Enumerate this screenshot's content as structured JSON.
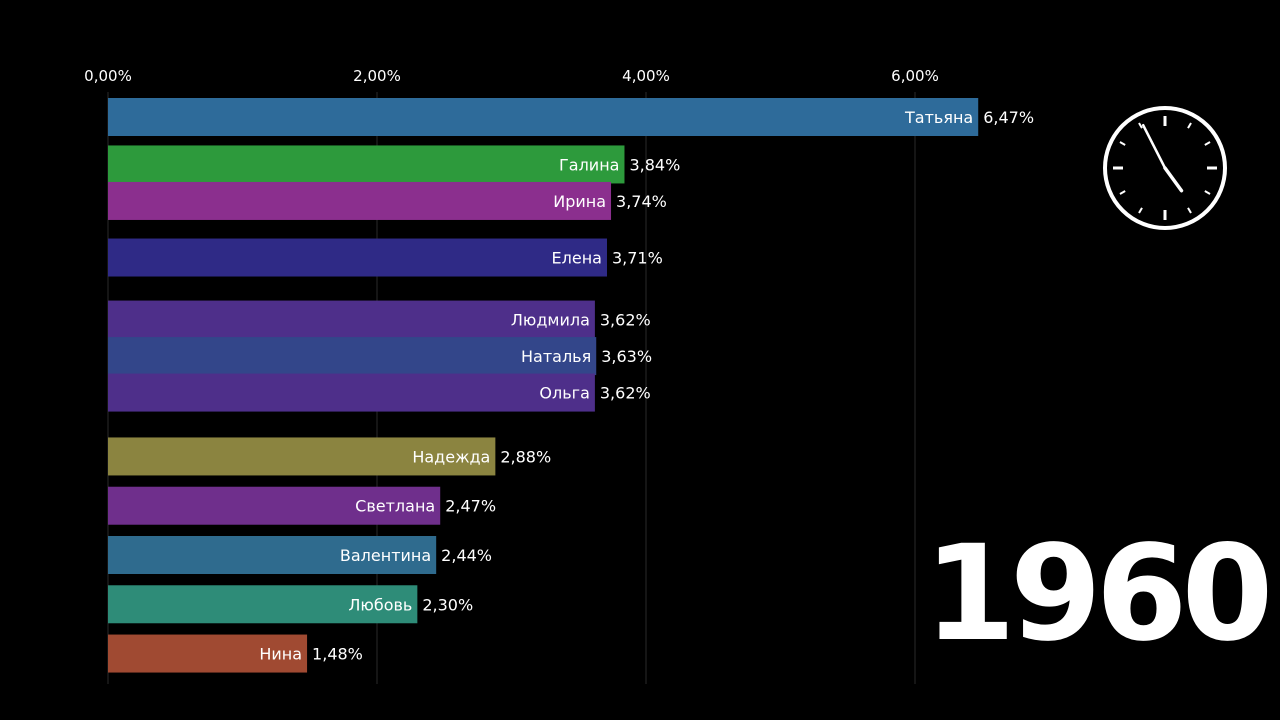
{
  "chart_data": {
    "type": "bar",
    "orientation": "horizontal",
    "title": "",
    "xlabel": "",
    "ylabel": "",
    "xlim": [
      0,
      7
    ],
    "x_ticks": [
      0,
      2,
      4,
      6
    ],
    "x_tick_labels": [
      "0,00%",
      "2,00%",
      "4,00%",
      "6,00%"
    ],
    "grid": true,
    "bars": [
      {
        "name": "Татьяна",
        "value": 6.47,
        "label": "6,47%",
        "color": "#2e6b9a",
        "rank": 0
      },
      {
        "name": "Галина",
        "value": 3.84,
        "label": "3,84%",
        "color": "#2d9a3c",
        "rank": 1.3
      },
      {
        "name": "Ирина",
        "value": 3.74,
        "label": "3,74%",
        "color": "#8b2f8e",
        "rank": 2.3
      },
      {
        "name": "Елена",
        "value": 3.71,
        "label": "3,71%",
        "color": "#2f2a86",
        "rank": 3.85
      },
      {
        "name": "Людмила",
        "value": 3.62,
        "label": "3,62%",
        "color": "#4e2f8a",
        "rank": 5.55
      },
      {
        "name": "Наталья",
        "value": 3.63,
        "label": "3,63%",
        "color": "#33468a",
        "rank": 6.55
      },
      {
        "name": "Ольга",
        "value": 3.62,
        "label": "3,62%",
        "color": "#4e2f8a",
        "rank": 7.55
      },
      {
        "name": "Надежда",
        "value": 2.88,
        "label": "2,88%",
        "color": "#8b8440",
        "rank": 9.3
      },
      {
        "name": "Светлана",
        "value": 2.47,
        "label": "2,47%",
        "color": "#6f2f8c",
        "rank": 10.65
      },
      {
        "name": "Валентина",
        "value": 2.44,
        "label": "2,44%",
        "color": "#2f6b8e",
        "rank": 12.0
      },
      {
        "name": "Любовь",
        "value": 2.3,
        "label": "2,30%",
        "color": "#2e8c78",
        "rank": 13.35
      },
      {
        "name": "Нина",
        "value": 1.48,
        "label": "1,48%",
        "color": "#a04a32",
        "rank": 14.7
      }
    ]
  },
  "year": "1960",
  "clock": {
    "hour": 4.8,
    "minute": 55.5,
    "icon": "clock-icon"
  },
  "colors": {
    "background": "#000000",
    "text": "#ffffff",
    "grid": "#2a2a2a"
  }
}
